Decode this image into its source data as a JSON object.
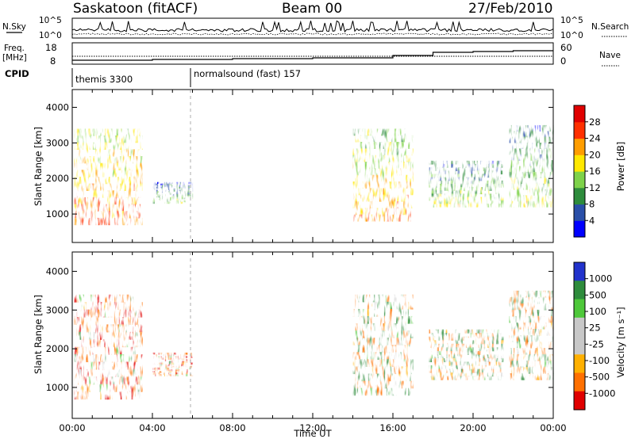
{
  "header": {
    "station": "Saskatoon (fitACF)",
    "beam": "Beam 00",
    "date": "27/Feb/2010"
  },
  "strips": {
    "nsky": {
      "label": "N.Sky",
      "tick_hi": "10^5",
      "tick_lo": "10^0"
    },
    "nsearch": {
      "label": "N.Search",
      "tick_hi": "10^5",
      "tick_lo": "10^0"
    },
    "freq": {
      "label_line1": "Freq.",
      "label_line2": "[MHz]",
      "ticks": [
        "18",
        "8"
      ]
    },
    "nave": {
      "label": "Nave",
      "ticks": [
        "60",
        "0"
      ]
    },
    "cpid": {
      "label": "CPID",
      "segments": [
        {
          "start_hour": 0,
          "name": "themis 3300"
        },
        {
          "start_hour": 6,
          "name": "normalsound (fast) 157"
        }
      ]
    }
  },
  "chart_data": [
    {
      "type": "heatmap",
      "panel": "power",
      "x_units": "hours UT",
      "xlim": [
        0,
        24
      ],
      "ylabel": "Slant Range [km]",
      "ylim": [
        200,
        4500
      ],
      "yticks": [
        "1000",
        "2000",
        "3000",
        "4000"
      ],
      "colorbar": {
        "label": "Power [dB]",
        "ticks": [
          "4",
          "8",
          "12",
          "16",
          "20",
          "24",
          "28"
        ],
        "colors": [
          "#0000ff",
          "#2a4fa8",
          "#2e8c3c",
          "#7ed24a",
          "#ffe800",
          "#ff9d00",
          "#ff3000",
          "#e00000"
        ]
      },
      "echo_regions": [
        {
          "t0": 0.1,
          "t1": 3.5,
          "r0": 700,
          "r1": 3400,
          "value_db": 22
        },
        {
          "t0": 4.0,
          "t1": 6.0,
          "r0": 1300,
          "r1": 1900,
          "value_db": 12
        },
        {
          "t0": 14.0,
          "t1": 17.0,
          "r0": 800,
          "r1": 3400,
          "value_db": 20
        },
        {
          "t0": 17.8,
          "t1": 21.5,
          "r0": 1200,
          "r1": 2500,
          "value_db": 14
        },
        {
          "t0": 21.8,
          "t1": 24.0,
          "r0": 1200,
          "r1": 3500,
          "value_db": 14
        }
      ]
    },
    {
      "type": "heatmap",
      "panel": "velocity",
      "x_units": "hours UT",
      "xlim": [
        0,
        24
      ],
      "xticks": [
        "00:00",
        "04:00",
        "08:00",
        "12:00",
        "16:00",
        "20:00",
        "00:00"
      ],
      "xlabel": "Time UT",
      "ylabel": "Slant Range [km]",
      "ylim": [
        200,
        4500
      ],
      "yticks": [
        "1000",
        "2000",
        "3000",
        "4000"
      ],
      "colorbar": {
        "label": "Velocity [m s⁻¹]",
        "ticks": [
          "1000",
          "500",
          "100",
          "25",
          "-25",
          "-100",
          "-500",
          "-1000"
        ],
        "colors": [
          "#2233cc",
          "#2e8c3c",
          "#4ec83a",
          "#c8c8c8",
          "#c8c8c8",
          "#ffb000",
          "#ff7000",
          "#e00000"
        ]
      },
      "echo_regions": [
        {
          "t0": 0.1,
          "t1": 3.5,
          "r0": 700,
          "r1": 3400,
          "value_ms": -300
        },
        {
          "t0": 4.0,
          "t1": 6.0,
          "r0": 1300,
          "r1": 1900,
          "value_ms": -300
        },
        {
          "t0": 14.0,
          "t1": 17.0,
          "r0": 800,
          "r1": 3400,
          "value_ms": 0
        },
        {
          "t0": 17.8,
          "t1": 21.5,
          "r0": 1200,
          "r1": 2500,
          "value_ms": 0
        },
        {
          "t0": 21.8,
          "t1": 24.0,
          "r0": 1200,
          "r1": 3500,
          "value_ms": 0
        }
      ]
    }
  ]
}
